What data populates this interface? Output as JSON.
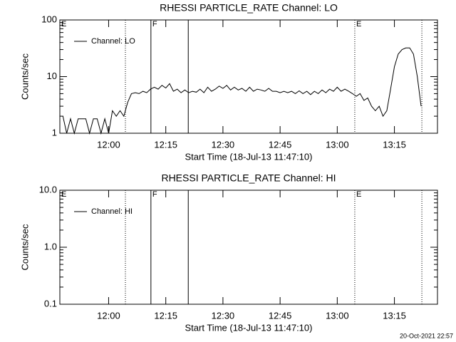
{
  "chart_data": [
    {
      "type": "line",
      "title": "RHESSI PARTICLE_RATE Channel: LO",
      "ylabel": "Counts/sec",
      "xlabel": "Start Time (18-Jul-13 11:47:10)",
      "ylog": true,
      "ylim": [
        1,
        100
      ],
      "yticks": [
        1,
        10,
        100
      ],
      "xlim": [
        707.2,
        806.3
      ],
      "xticks": [
        {
          "value": 720,
          "label": "12:00"
        },
        {
          "value": 735,
          "label": "12:15"
        },
        {
          "value": 750,
          "label": "12:30"
        },
        {
          "value": 765,
          "label": "12:45"
        },
        {
          "value": 780,
          "label": "13:00"
        },
        {
          "value": 795,
          "label": "13:15"
        }
      ],
      "legend": "upper left",
      "vlines": [
        {
          "x": 724.4,
          "style": "dotted"
        },
        {
          "x": 731.1,
          "style": "solid"
        },
        {
          "x": 740.9,
          "style": "solid"
        },
        {
          "x": 784.6,
          "style": "dotted"
        },
        {
          "x": 802.2,
          "style": "dotted"
        }
      ],
      "annotations": [
        {
          "text": "E",
          "x": 707.2
        },
        {
          "text": "F",
          "x": 731.1
        },
        {
          "text": "E",
          "x": 784.6
        }
      ],
      "series": [
        {
          "name": "Channel: LO",
          "color": "#000000",
          "x": [
            708,
            709,
            710,
            711,
            712,
            713,
            714,
            715,
            716,
            717,
            718,
            719,
            720,
            721,
            722,
            723,
            724,
            725,
            726,
            727,
            728,
            729,
            730,
            731,
            732,
            733,
            734,
            735,
            736,
            737,
            738,
            739,
            740,
            741,
            742,
            743,
            744,
            745,
            746,
            747,
            748,
            749,
            750,
            751,
            752,
            753,
            754,
            755,
            756,
            757,
            758,
            759,
            760,
            761,
            762,
            763,
            764,
            765,
            766,
            767,
            768,
            769,
            770,
            771,
            772,
            773,
            774,
            775,
            776,
            777,
            778,
            779,
            780,
            781,
            782,
            783,
            784,
            785,
            786,
            787,
            788,
            789,
            790,
            791,
            792,
            793,
            794,
            795,
            796,
            797,
            798,
            799,
            800,
            801,
            802
          ],
          "values": [
            2,
            1,
            1.8,
            1,
            1.8,
            1.8,
            1.8,
            1,
            1.8,
            1.8,
            1,
            1.8,
            1,
            2.5,
            2,
            2.5,
            2,
            3.5,
            5,
            5.2,
            5,
            5.5,
            5.2,
            6,
            6.5,
            6,
            7,
            6.3,
            7.5,
            5.5,
            6,
            5.2,
            5.8,
            5.2,
            5.5,
            5.3,
            6,
            5.2,
            6.5,
            5.5,
            6,
            6.8,
            6.2,
            7,
            5.8,
            6.5,
            5.8,
            6.2,
            5.5,
            6.5,
            5.5,
            6,
            5.8,
            5.5,
            6.2,
            5.5,
            5.5,
            5.2,
            5.5,
            5.2,
            5.5,
            5,
            5.6,
            5,
            5.5,
            4.8,
            5.5,
            5,
            5.8,
            5.2,
            6,
            5.5,
            6.5,
            5.5,
            6,
            5.5,
            5,
            4.5,
            5,
            3.8,
            4.2,
            3,
            2.5,
            3,
            2,
            2.5,
            6,
            15,
            25,
            30,
            32,
            32,
            25,
            10,
            3
          ]
        }
      ]
    },
    {
      "type": "line",
      "title": "RHESSI PARTICLE_RATE Channel: HI",
      "ylabel": "Counts/sec",
      "xlabel": "Start Time (18-Jul-13 11:47:10)",
      "ylog": true,
      "ylim": [
        0.1,
        10
      ],
      "yticks": [
        0.1,
        {
          "value": 1,
          "label": "1.0"
        },
        {
          "value": 10,
          "label": "10.0"
        }
      ],
      "xlim": [
        707.2,
        806.3
      ],
      "xticks": [
        {
          "value": 720,
          "label": "12:00"
        },
        {
          "value": 735,
          "label": "12:15"
        },
        {
          "value": 750,
          "label": "12:30"
        },
        {
          "value": 765,
          "label": "12:45"
        },
        {
          "value": 780,
          "label": "13:00"
        },
        {
          "value": 795,
          "label": "13:15"
        }
      ],
      "legend": "upper left",
      "vlines": [
        {
          "x": 724.4,
          "style": "dotted"
        },
        {
          "x": 731.1,
          "style": "solid"
        },
        {
          "x": 740.9,
          "style": "solid"
        },
        {
          "x": 784.6,
          "style": "dotted"
        },
        {
          "x": 802.2,
          "style": "dotted"
        }
      ],
      "annotations": [
        {
          "text": "E",
          "x": 707.2
        },
        {
          "text": "F",
          "x": 731.1
        },
        {
          "text": "E",
          "x": 784.6
        }
      ],
      "series": [
        {
          "name": "Channel: HI",
          "color": "#000000",
          "x": [],
          "values": []
        }
      ]
    }
  ],
  "footer": "20-Oct-2021 22:57"
}
